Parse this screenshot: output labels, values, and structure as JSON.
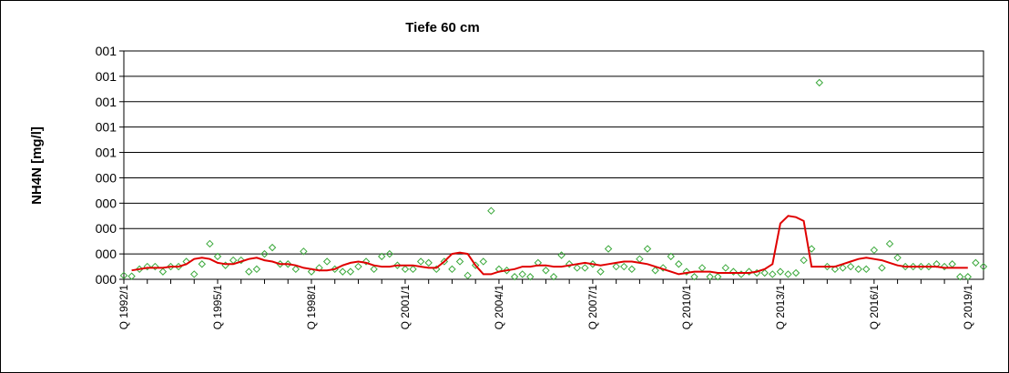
{
  "chart_data": {
    "type": "scatter",
    "title": "Tiefe  60 cm",
    "ylabel": "NH4N [mg/l]",
    "xlabel": "",
    "grid": true,
    "legend": "none",
    "y_tick_labels": [
      "000",
      "000",
      "000",
      "000",
      "000",
      "001",
      "001",
      "001",
      "001",
      "001"
    ],
    "ylim": [
      0,
      9
    ],
    "x_tick_labels": [
      "Q 1992/1",
      "Q 1995/1",
      "Q 1998/1",
      "Q 2001/1",
      "Q 2004/1",
      "Q 2007/1",
      "Q 2010/1",
      "Q 2013/1",
      "Q 2016/1",
      "Q 2019/1"
    ],
    "x_tick_values": [
      0,
      12,
      24,
      36,
      48,
      60,
      72,
      84,
      96,
      108
    ],
    "xlim": [
      0,
      110
    ],
    "colors": {
      "points": "#3aa83a",
      "trend": "#e00000",
      "grid": "#000000"
    },
    "series": [
      {
        "kind": "points",
        "x": [
          0,
          1,
          2,
          3,
          4,
          5,
          6,
          7,
          8,
          9,
          10,
          11,
          12,
          13,
          14,
          15,
          16,
          17,
          18,
          19,
          20,
          21,
          22,
          23,
          24,
          25,
          26,
          27,
          28,
          29,
          30,
          31,
          32,
          33,
          34,
          35,
          36,
          37,
          38,
          39,
          40,
          41,
          42,
          43,
          44,
          45,
          46,
          47,
          48,
          49,
          50,
          51,
          52,
          53,
          54,
          55,
          56,
          57,
          58,
          59,
          60,
          61,
          62,
          63,
          64,
          65,
          66,
          67,
          68,
          69,
          70,
          71,
          72,
          73,
          74,
          75,
          76,
          77,
          78,
          79,
          80,
          81,
          82,
          83,
          84,
          85,
          86,
          87,
          88,
          89,
          90,
          91,
          92,
          93,
          94,
          95,
          96,
          97,
          98,
          99,
          100,
          101,
          102,
          103,
          104,
          105,
          106,
          107,
          108,
          109,
          110
        ],
        "y": [
          0.15,
          0.12,
          0.4,
          0.5,
          0.5,
          0.3,
          0.5,
          0.5,
          0.7,
          0.2,
          0.6,
          1.4,
          0.9,
          0.55,
          0.75,
          0.75,
          0.3,
          0.4,
          1.0,
          1.25,
          0.6,
          0.6,
          0.4,
          1.1,
          0.3,
          0.45,
          0.7,
          0.4,
          0.3,
          0.3,
          0.5,
          0.7,
          0.4,
          0.9,
          1.0,
          0.55,
          0.4,
          0.4,
          0.7,
          0.65,
          0.4,
          0.7,
          0.4,
          0.7,
          0.15,
          0.55,
          0.7,
          2.7,
          0.4,
          0.35,
          0.1,
          0.2,
          0.1,
          0.65,
          0.35,
          0.1,
          0.95,
          0.6,
          0.45,
          0.45,
          0.6,
          0.3,
          1.2,
          0.5,
          0.5,
          0.4,
          0.8,
          1.2,
          0.35,
          0.45,
          0.9,
          0.6,
          0.3,
          0.1,
          0.45,
          0.1,
          0.1,
          0.45,
          0.3,
          0.2,
          0.3,
          0.25,
          0.25,
          0.2,
          0.3,
          0.2,
          0.25,
          0.75,
          1.2,
          7.75,
          0.5,
          0.4,
          0.45,
          0.5,
          0.4,
          0.4,
          1.15,
          0.45,
          1.4,
          0.85,
          0.5,
          0.5,
          0.5,
          0.5,
          0.6,
          0.5,
          0.6,
          0.1,
          0.1,
          0.65,
          0.5
        ]
      },
      {
        "kind": "trend",
        "x": [
          1,
          2,
          3,
          4,
          5,
          6,
          7,
          8,
          9,
          10,
          11,
          12,
          13,
          14,
          15,
          16,
          17,
          18,
          19,
          20,
          21,
          22,
          23,
          24,
          25,
          26,
          27,
          28,
          29,
          30,
          31,
          32,
          33,
          34,
          35,
          36,
          37,
          38,
          39,
          40,
          41,
          42,
          43,
          44,
          45,
          46,
          47,
          48,
          49,
          50,
          51,
          52,
          53,
          54,
          55,
          56,
          57,
          58,
          59,
          60,
          61,
          62,
          63,
          64,
          65,
          66,
          67,
          68,
          69,
          70,
          71,
          72,
          73,
          74,
          75,
          76,
          77,
          78,
          79,
          80,
          81,
          82,
          83,
          84,
          85,
          86,
          87,
          88,
          89,
          90,
          91,
          92,
          93,
          94,
          95,
          96,
          97,
          98,
          99,
          100,
          101,
          102,
          103,
          104,
          105,
          106,
          107,
          108
        ],
        "y": [
          0.35,
          0.4,
          0.45,
          0.45,
          0.45,
          0.5,
          0.5,
          0.6,
          0.8,
          0.85,
          0.8,
          0.65,
          0.6,
          0.6,
          0.7,
          0.8,
          0.85,
          0.75,
          0.7,
          0.6,
          0.6,
          0.55,
          0.45,
          0.4,
          0.35,
          0.35,
          0.4,
          0.55,
          0.65,
          0.7,
          0.65,
          0.55,
          0.5,
          0.5,
          0.55,
          0.55,
          0.55,
          0.5,
          0.45,
          0.45,
          0.7,
          1.0,
          1.05,
          1.0,
          0.55,
          0.2,
          0.2,
          0.3,
          0.35,
          0.4,
          0.5,
          0.5,
          0.55,
          0.55,
          0.5,
          0.5,
          0.55,
          0.6,
          0.65,
          0.6,
          0.55,
          0.6,
          0.65,
          0.7,
          0.7,
          0.65,
          0.6,
          0.5,
          0.4,
          0.3,
          0.2,
          0.25,
          0.3,
          0.3,
          0.3,
          0.25,
          0.25,
          0.25,
          0.25,
          0.25,
          0.3,
          0.4,
          0.6,
          2.2,
          2.5,
          2.45,
          2.3,
          0.5,
          0.5,
          0.5,
          0.5,
          0.6,
          0.7,
          0.8,
          0.85,
          0.8,
          0.75,
          0.65,
          0.55,
          0.5,
          0.5,
          0.5,
          0.5,
          0.5,
          0.45,
          0.45,
          0.45,
          0.45
        ]
      }
    ]
  }
}
